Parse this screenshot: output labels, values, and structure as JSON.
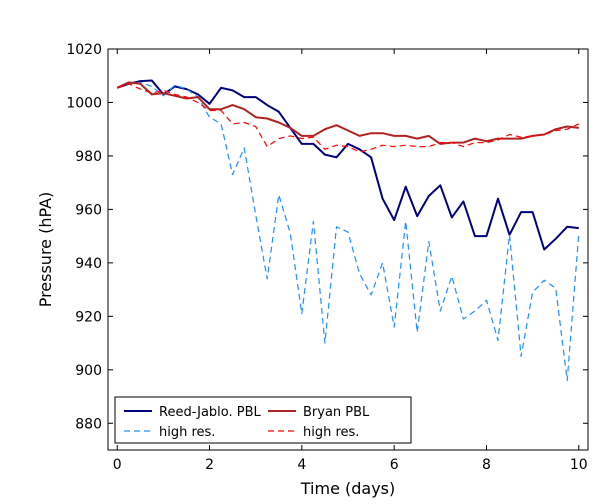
{
  "chart_data": {
    "type": "line",
    "title": "",
    "xlabel": "Time (days)",
    "ylabel": "Pressure (hPA)",
    "xlim": [
      -0.2,
      10.2
    ],
    "ylim": [
      870,
      1020
    ],
    "xticks": [
      0,
      2,
      4,
      6,
      8,
      10
    ],
    "yticks": [
      880,
      900,
      920,
      940,
      960,
      980,
      1000,
      1020
    ],
    "grid": false,
    "legend": {
      "placement": "bottom-left",
      "columns": 2
    },
    "series": [
      {
        "name": "Reed-Jablo. PBL",
        "color": "#000080",
        "style": "solid",
        "x": [
          0,
          0.25,
          0.5,
          0.75,
          1.0,
          1.25,
          1.5,
          1.75,
          2.0,
          2.25,
          2.5,
          2.75,
          3.0,
          3.25,
          3.5,
          3.75,
          4.0,
          4.25,
          4.5,
          4.75,
          5.0,
          5.25,
          5.5,
          5.75,
          6.0,
          6.25,
          6.5,
          6.75,
          7.0,
          7.25,
          7.5,
          7.75,
          8.0,
          8.25,
          8.5,
          8.75,
          9.0,
          9.25,
          9.5,
          9.75,
          10.0
        ],
        "values": [
          1005.5,
          1007,
          1008,
          1008.2,
          1003,
          1006,
          1005,
          1003,
          999.5,
          1005.5,
          1004.5,
          1002,
          1002,
          999,
          996.5,
          990.5,
          984.5,
          984.5,
          980.5,
          979.5,
          984.5,
          982.5,
          979.5,
          964,
          956,
          968.5,
          957.5,
          965,
          969,
          957,
          963,
          950,
          950,
          964,
          950.5,
          959,
          959,
          945,
          949,
          953.5,
          953
        ]
      },
      {
        "name": "high res.",
        "color": "#1e90ff",
        "style": "dashed",
        "x": [
          0,
          0.25,
          0.5,
          0.75,
          1.0,
          1.25,
          1.5,
          1.75,
          2.0,
          2.25,
          2.5,
          2.75,
          3.0,
          3.25,
          3.5,
          3.75,
          4.0,
          4.25,
          4.5,
          4.75,
          5.0,
          5.25,
          5.5,
          5.75,
          6.0,
          6.25,
          6.5,
          6.75,
          7.0,
          7.25,
          7.5,
          7.75,
          8.0,
          8.25,
          8.5,
          8.75,
          9.0,
          9.25,
          9.5,
          9.75,
          10.0
        ],
        "values": [
          1005.5,
          1007,
          1007.5,
          1006,
          1002.5,
          1006.5,
          1005,
          1002,
          994.5,
          992,
          973,
          983,
          958,
          934,
          965.5,
          951,
          921,
          955.5,
          910,
          953.5,
          951.5,
          936,
          928,
          940,
          916,
          955.5,
          914,
          948,
          922,
          935,
          919,
          922,
          926,
          911,
          950.5,
          905,
          929,
          933.5,
          930.5,
          896,
          951
        ]
      },
      {
        "name": "Bryan PBL",
        "color": "#b22222",
        "style": "solid",
        "x": [
          0,
          0.25,
          0.5,
          0.75,
          1.0,
          1.25,
          1.5,
          1.75,
          2.0,
          2.25,
          2.5,
          2.75,
          3.0,
          3.25,
          3.5,
          3.75,
          4.0,
          4.25,
          4.5,
          4.75,
          5.0,
          5.25,
          5.5,
          5.75,
          6.0,
          6.25,
          6.5,
          6.75,
          7.0,
          7.25,
          7.5,
          7.75,
          8.0,
          8.25,
          8.5,
          8.75,
          9.0,
          9.25,
          9.5,
          9.75,
          10.0
        ],
        "values": [
          1005.5,
          1007.5,
          1007,
          1003,
          1003.5,
          1002.5,
          1001.5,
          1002,
          997.5,
          997.5,
          999,
          997.5,
          994.5,
          994,
          992.5,
          990.5,
          987.5,
          987.5,
          990,
          991.5,
          989.5,
          987.5,
          988.5,
          988.5,
          987.5,
          987.5,
          986.5,
          987.5,
          984.5,
          985,
          985,
          986.5,
          985.5,
          986.5,
          986.5,
          986.5,
          987.5,
          988,
          990,
          991,
          990.5
        ]
      },
      {
        "name": "high res.",
        "color": "#ff0000",
        "style": "dashed",
        "x": [
          0,
          0.25,
          0.5,
          0.75,
          1.0,
          1.25,
          1.5,
          1.75,
          2.0,
          2.25,
          2.5,
          2.75,
          3.0,
          3.25,
          3.5,
          3.75,
          4.0,
          4.25,
          4.5,
          4.75,
          5.0,
          5.25,
          5.5,
          5.75,
          6.0,
          6.25,
          6.5,
          6.75,
          7.0,
          7.25,
          7.5,
          7.75,
          8.0,
          8.25,
          8.5,
          8.75,
          9.0,
          9.25,
          9.5,
          9.75,
          10.0
        ],
        "values": [
          1005.5,
          1007,
          1005,
          1003.5,
          1004.5,
          1003,
          1002,
          1000,
          997,
          997,
          992,
          992.5,
          991,
          983.5,
          986.5,
          987.5,
          986.5,
          987,
          982.5,
          984,
          983.5,
          981.5,
          982.5,
          984,
          983.5,
          984,
          983.5,
          983.5,
          985,
          985,
          983.5,
          985,
          985,
          986,
          988,
          987,
          987.5,
          988,
          989.5,
          990,
          992
        ]
      }
    ]
  }
}
